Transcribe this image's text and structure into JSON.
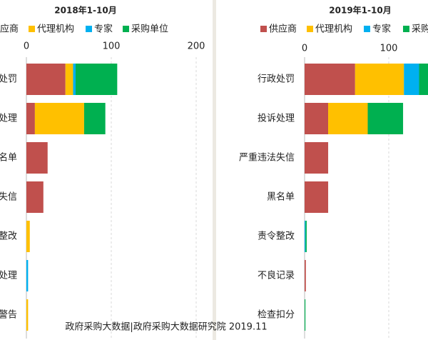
{
  "chart_data": [
    {
      "type": "bar",
      "orientation": "horizontal",
      "stacked": true,
      "title": "2018年1-10月",
      "categories": [
        "处罚",
        "处理",
        "名单",
        "失信",
        "整改",
        "处理",
        "警告"
      ],
      "series": [
        {
          "name": "应商",
          "color": "#c0504d",
          "values": [
            46,
            10,
            25,
            20,
            0,
            0,
            0
          ]
        },
        {
          "name": "代理机构",
          "color": "#ffc000",
          "values": [
            9,
            58,
            0,
            0,
            4,
            0,
            2
          ]
        },
        {
          "name": "专家",
          "color": "#00b0f0",
          "values": [
            3,
            0,
            0,
            0,
            0,
            2,
            0
          ]
        },
        {
          "name": "采购单位",
          "color": "#00b050",
          "values": [
            49,
            25,
            0,
            0,
            0,
            0,
            0
          ]
        }
      ],
      "xlim": [
        0,
        220
      ],
      "xticks": [
        0,
        100,
        200
      ],
      "grid": true
    },
    {
      "type": "bar",
      "orientation": "horizontal",
      "stacked": true,
      "title": "2019年1-10月",
      "categories": [
        "行政处罚",
        "投诉处理",
        "严重违法失信",
        "黑名单",
        "责令整改",
        "不良记录",
        "检查扣分"
      ],
      "series": [
        {
          "name": "供应商",
          "color": "#c0504d",
          "values": [
            60,
            28,
            28,
            28,
            0,
            1.5,
            0
          ]
        },
        {
          "name": "代理机构",
          "color": "#ffc000",
          "values": [
            58,
            47,
            0,
            0,
            0,
            0,
            0
          ]
        },
        {
          "name": "专家",
          "color": "#00b0f0",
          "values": [
            18,
            0,
            0,
            0,
            1,
            0,
            0
          ]
        },
        {
          "name": "采购",
          "color": "#00b050",
          "values": [
            15,
            42,
            0,
            0,
            1.5,
            0,
            1
          ]
        }
      ],
      "xlim": [
        0,
        220
      ],
      "xticks": [
        0,
        100
      ],
      "grid": true
    }
  ],
  "footer": "政府采购大数据|政府采购大数据研究院 2019.11"
}
